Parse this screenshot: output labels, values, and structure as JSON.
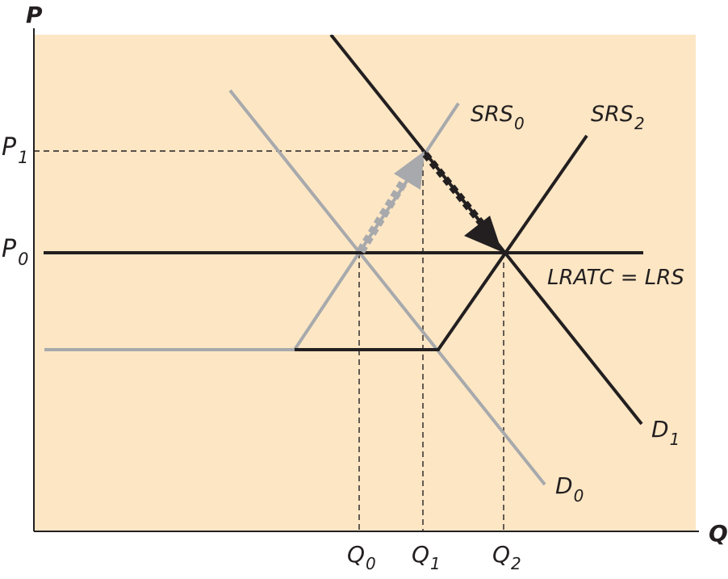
{
  "colors": {
    "background": "#ffffff",
    "plot_fill": "#fce6c4",
    "dark": "#231f20",
    "grey": "#a7a9ac"
  },
  "axes": {
    "y_label": "P",
    "x_label": "Q"
  },
  "price_levels": [
    {
      "main": "P",
      "sub": "1"
    },
    {
      "main": "P",
      "sub": "0"
    }
  ],
  "quantity_levels": [
    {
      "main": "Q",
      "sub": "0"
    },
    {
      "main": "Q",
      "sub": "1"
    },
    {
      "main": "Q",
      "sub": "2"
    }
  ],
  "curves": {
    "srs0": {
      "main": "SRS",
      "sub": "0"
    },
    "srs2": {
      "main": "SRS",
      "sub": "2"
    },
    "d0": {
      "main": "D",
      "sub": "0"
    },
    "d1": {
      "main": "D",
      "sub": "1"
    },
    "lrs": "LRATC = LRS"
  },
  "arrows": [
    {
      "from": "initial equilibrium (Q0, P0)",
      "to": "short-run equilibrium (Q1, P1)",
      "style": "dashed-grey"
    },
    {
      "from": "short-run equilibrium (Q1, P1)",
      "to": "long-run equilibrium (Q2, P0)",
      "style": "dashed-dark"
    }
  ]
}
